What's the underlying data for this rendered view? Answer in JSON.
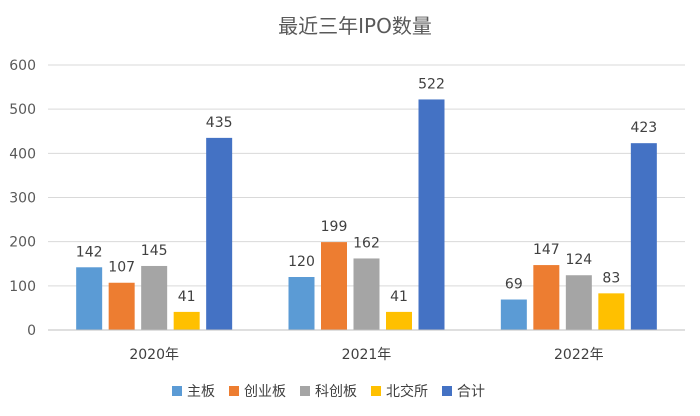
{
  "chart_data": {
    "type": "bar",
    "title": "最近三年IPO数量",
    "categories": [
      "2020年",
      "2021年",
      "2022年"
    ],
    "series": [
      {
        "name": "主板",
        "color": "#5B9BD5",
        "values": [
          142,
          120,
          69
        ]
      },
      {
        "name": "创业板",
        "color": "#ED7D31",
        "values": [
          107,
          199,
          147
        ]
      },
      {
        "name": "科创板",
        "color": "#A5A5A5",
        "values": [
          145,
          162,
          124
        ]
      },
      {
        "name": "北交所",
        "color": "#FFC000",
        "values": [
          41,
          41,
          83
        ]
      },
      {
        "name": "合计",
        "color": "#4472C4",
        "values": [
          435,
          522,
          423
        ]
      }
    ],
    "ylim": [
      0,
      600
    ],
    "yticks": [
      0,
      100,
      200,
      300,
      400,
      500,
      600
    ],
    "grid": true,
    "legend": "bottom",
    "xlabel": "",
    "ylabel": ""
  }
}
